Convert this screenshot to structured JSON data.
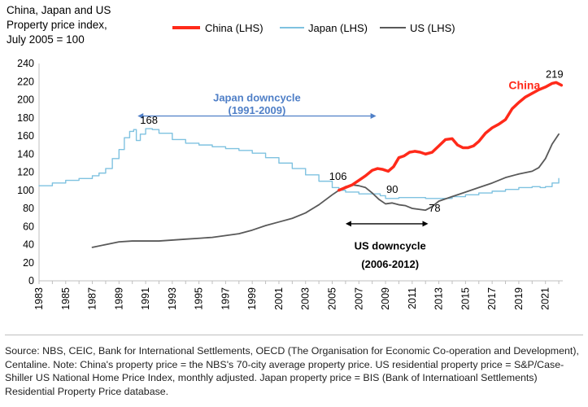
{
  "chart_data": {
    "type": "line",
    "title": [
      "China, Japan and US",
      "Property price index,",
      "July 2005 = 100"
    ],
    "xlabel": "",
    "ylabel": "",
    "ylim": [
      0,
      240
    ],
    "yticks": [
      0,
      20,
      40,
      60,
      80,
      100,
      120,
      140,
      160,
      180,
      200,
      220,
      240
    ],
    "xlim": [
      1983,
      2022.3
    ],
    "xticks": [
      "1983",
      "1985",
      "1987",
      "1989",
      "1991",
      "1993",
      "1995",
      "1997",
      "1999",
      "2001",
      "2003",
      "2005",
      "2007",
      "2009",
      "2011",
      "2013",
      "2015",
      "2017",
      "2019",
      "2021"
    ],
    "legend_position": "top",
    "series": [
      {
        "name": "China (LHS)",
        "color": "#ff2a1a",
        "x": [
          2005.5,
          2006,
          2006.5,
          2007,
          2007.5,
          2008,
          2008.4,
          2008.8,
          2009.2,
          2009.6,
          2010,
          2010.4,
          2010.8,
          2011.2,
          2011.6,
          2012,
          2012.5,
          2013,
          2013.5,
          2014,
          2014.4,
          2014.8,
          2015.2,
          2015.6,
          2016,
          2016.5,
          2017,
          2017.5,
          2018,
          2018.5,
          2019,
          2019.5,
          2020,
          2020.5,
          2021,
          2021.5,
          2021.8,
          2022.2
        ],
        "values": [
          100,
          103,
          106,
          111,
          116,
          122,
          124,
          123,
          121,
          126,
          136,
          138,
          142,
          143,
          142,
          140,
          142,
          149,
          156,
          157,
          150,
          147,
          147,
          149,
          154,
          163,
          169,
          173,
          178,
          190,
          197,
          203,
          207,
          211,
          214,
          218,
          219,
          216
        ]
      },
      {
        "name": "Japan (LHS)",
        "color": "#7fc2e0",
        "x": [
          1983,
          1984,
          1985,
          1986,
          1987,
          1987.5,
          1988,
          1988.5,
          1989,
          1989.4,
          1989.8,
          1990.1,
          1990.3,
          1990.6,
          1991,
          1991.5,
          1992,
          1993,
          1994,
          1995,
          1996,
          1997,
          1998,
          1999,
          2000,
          2001,
          2002,
          2003,
          2004,
          2005,
          2005.5,
          2006,
          2007,
          2008,
          2008.6,
          2009,
          2009.5,
          2010,
          2011,
          2012,
          2013,
          2014,
          2015,
          2016,
          2017,
          2018,
          2019,
          2020,
          2020.6,
          2021,
          2021.5,
          2022
        ],
        "values": [
          105,
          108,
          111,
          113,
          116,
          119,
          124,
          135,
          145,
          158,
          165,
          167,
          155,
          162,
          168,
          167,
          163,
          156,
          152,
          150,
          148,
          146,
          144,
          141,
          136,
          130,
          124,
          117,
          110,
          103,
          100,
          98,
          96,
          96,
          94,
          91,
          91,
          92,
          92,
          91,
          91,
          93,
          95,
          97,
          99,
          101,
          103,
          104,
          103,
          104,
          108,
          113
        ]
      },
      {
        "name": "US (LHS)",
        "color": "#595959",
        "x": [
          1987,
          1988,
          1989,
          1990,
          1991,
          1992,
          1993,
          1994,
          1995,
          1996,
          1997,
          1998,
          1999,
          2000,
          2001,
          2002,
          2003,
          2004,
          2005,
          2005.5,
          2006,
          2006.5,
          2007,
          2007.5,
          2008,
          2008.5,
          2009,
          2009.5,
          2010,
          2010.5,
          2011,
          2011.5,
          2012,
          2012.5,
          2013,
          2014,
          2015,
          2016,
          2017,
          2018,
          2019,
          2020,
          2020.5,
          2021,
          2021.5,
          2022
        ],
        "values": [
          37,
          40,
          43,
          44,
          44,
          44,
          45,
          46,
          47,
          48,
          50,
          52,
          56,
          61,
          65,
          69,
          75,
          84,
          95,
          100,
          104,
          106,
          105,
          103,
          97,
          90,
          85,
          86,
          84,
          83,
          80,
          79,
          78,
          82,
          88,
          93,
          98,
          103,
          108,
          114,
          118,
          121,
          125,
          135,
          151,
          162
        ]
      }
    ],
    "annotations": {
      "japan_downcycle": [
        "Japan downcycle",
        "(1991-2009)"
      ],
      "us_downcycle": [
        "US downcycle",
        "(2006-2012)"
      ],
      "japan_peak_label": "168",
      "base_label": "106",
      "japan_trough_label": "90",
      "us_trough_label": "78",
      "china_peak_label": "219",
      "china_series_label": "China",
      "japan_arrow_range": [
        1990.4,
        2008.3
      ],
      "us_arrow_range": [
        2006,
        2012.2
      ],
      "japan_peak_point": [
        1991,
        168
      ],
      "base_point": [
        2005.8,
        106
      ],
      "japan_trough_point": [
        2009.5,
        90
      ],
      "us_trough_point": [
        2012,
        78
      ],
      "china_peak_point": [
        2021.8,
        219
      ]
    }
  },
  "source_note": "Source: NBS, CEIC, Bank for International Settlements, OECD (The Organisation for Economic Co-operation and Development), Centaline. Note: China's property price = the NBS's 70-city average property price. US residential property price = S&P/Case-Shiller US National Home Price Index, monthly adjusted. Japan property price = BIS (Bank of Internatioanl Settlements) Residential Property Price database."
}
